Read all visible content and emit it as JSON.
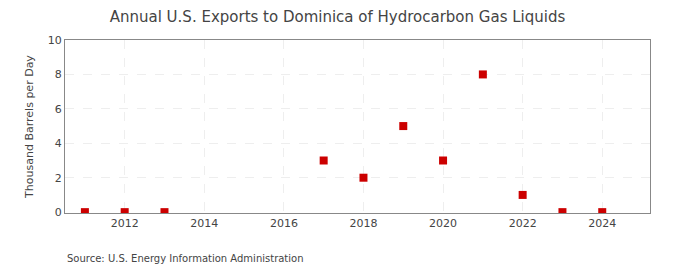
{
  "chart_data": {
    "type": "scatter",
    "title": "Annual U.S. Exports to Dominica of Hydrocarbon Gas Liquids",
    "ylabel": "Thousand Barrels per Day",
    "source": "Source: U.S. Energy Information Administration",
    "x": [
      2011,
      2012,
      2013,
      2017,
      2018,
      2019,
      2020,
      2021,
      2022,
      2023,
      2024
    ],
    "values": [
      0,
      0,
      0,
      3,
      2,
      5,
      3,
      8,
      1,
      0,
      0
    ],
    "color": "#cc0000",
    "marker": "square",
    "xlim": [
      2010.5,
      2025.2
    ],
    "ylim": [
      -0.05,
      10
    ],
    "xticks": [
      2012,
      2014,
      2016,
      2018,
      2020,
      2022,
      2024
    ],
    "yticks": [
      0,
      2,
      4,
      6,
      8,
      10
    ],
    "grid": true
  }
}
